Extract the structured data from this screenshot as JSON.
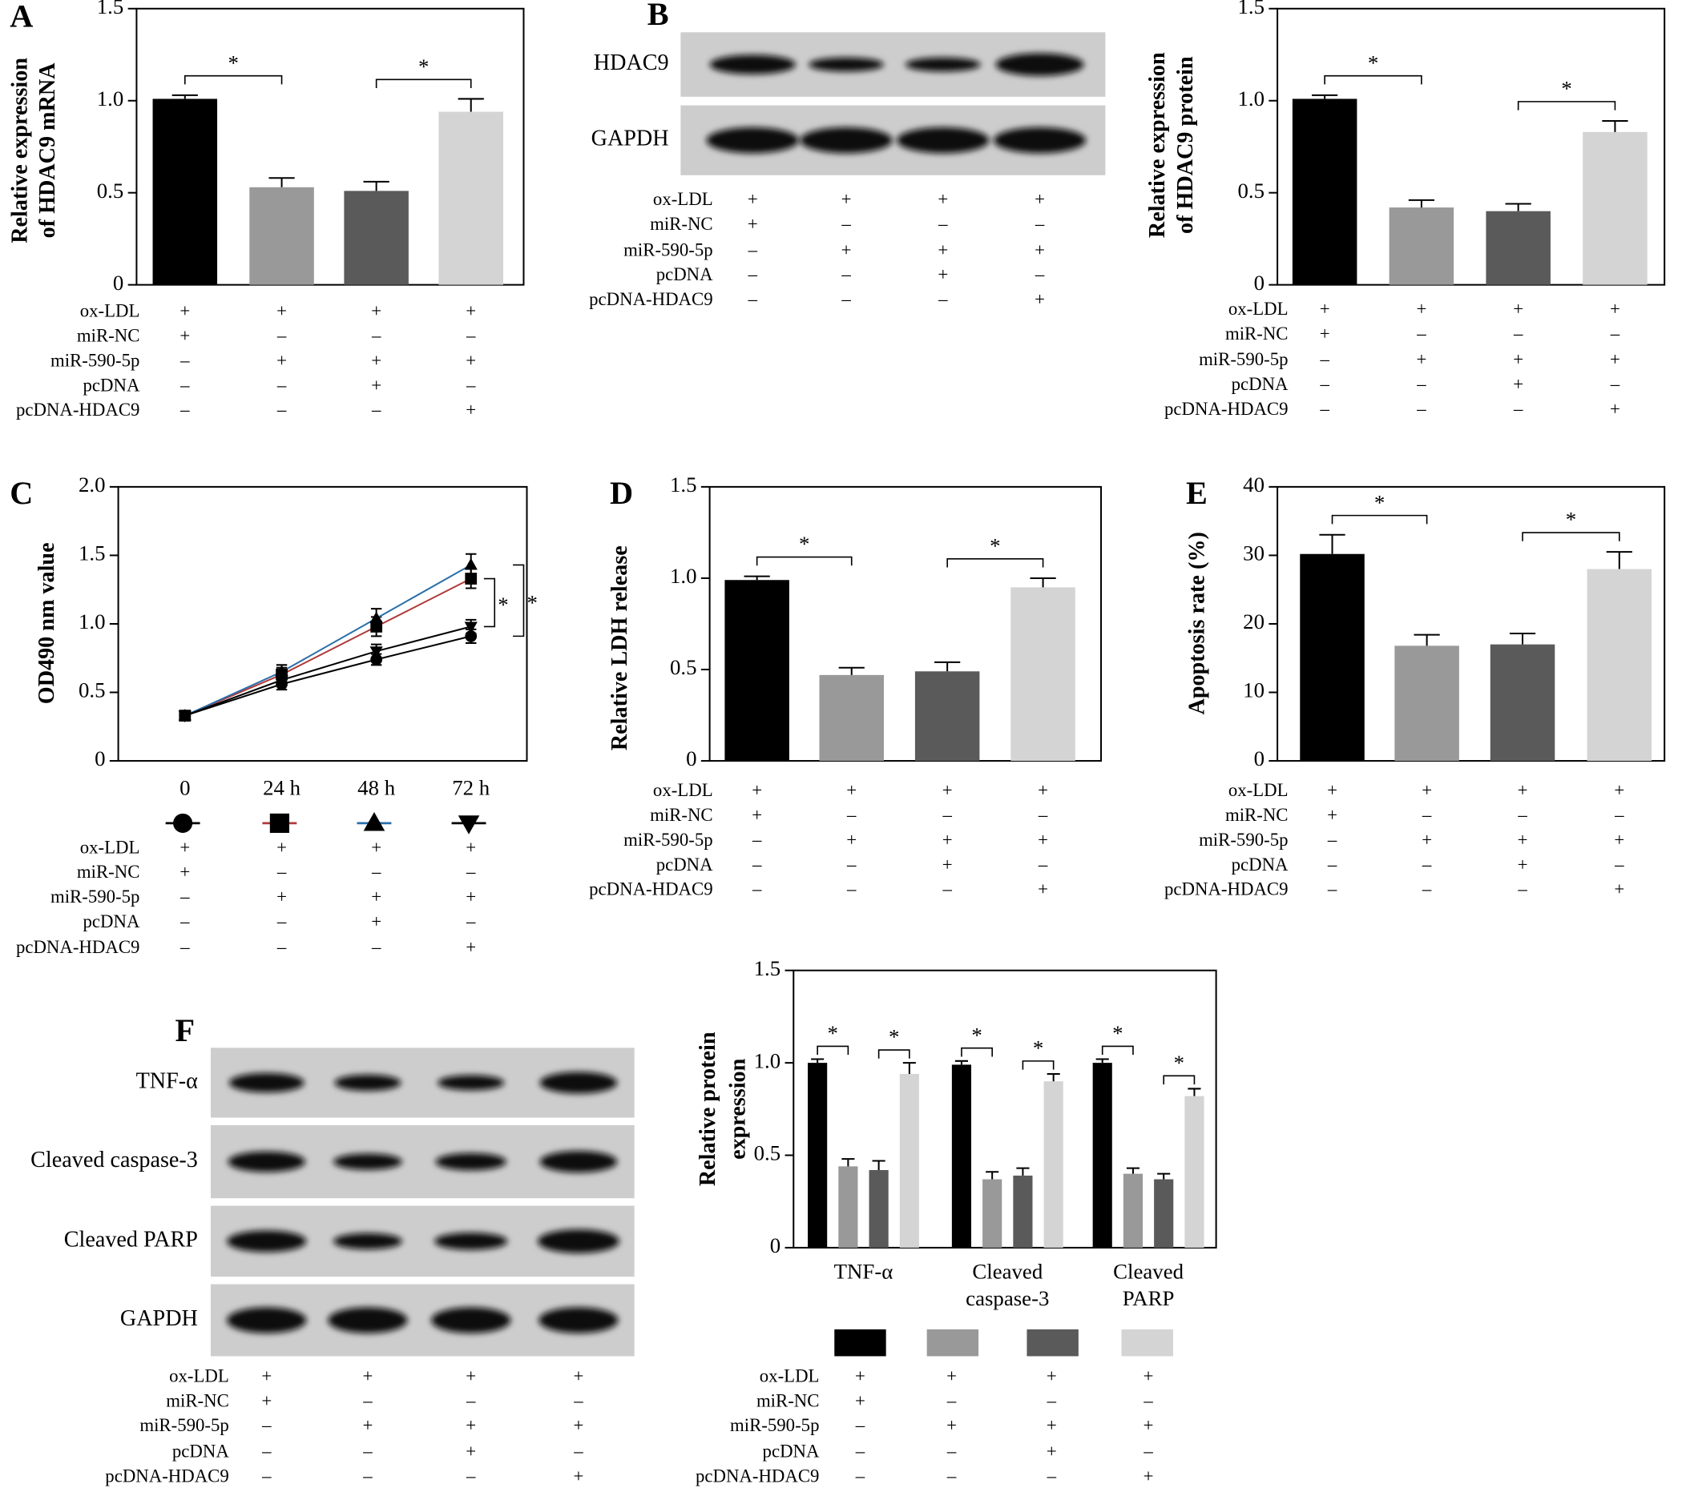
{
  "chart_data": [
    {
      "type": "bar",
      "panel": "A",
      "y_label": [
        "Relative expression",
        "of HDAC9 mRNA"
      ],
      "values": [
        1.01,
        0.53,
        0.51,
        0.94
      ],
      "errors": [
        0.02,
        0.05,
        0.05,
        0.07
      ],
      "colors": [
        "#000000",
        "#999999",
        "#5a5a5a",
        "#d4d4d4"
      ],
      "ylim": [
        0,
        1.5
      ],
      "yticks": [
        0,
        0.5,
        {
          "value": 1,
          "label": "1.0"
        },
        1.5
      ],
      "annotations": [
        {
          "text": "*",
          "from": 0,
          "to": 1
        },
        {
          "text": "*",
          "from": 2,
          "to": 3
        }
      ],
      "conditions": [
        {
          "label": "ox-LDL",
          "signs": [
            "+",
            "+",
            "+",
            "+"
          ]
        },
        {
          "label": "miR-NC",
          "signs": [
            "+",
            "–",
            "–",
            "–"
          ]
        },
        {
          "label": "miR-590-5p",
          "signs": [
            "–",
            "+",
            "+",
            "+"
          ]
        },
        {
          "label": "pcDNA",
          "signs": [
            "–",
            "–",
            "+",
            "–"
          ]
        },
        {
          "label": "pcDNA-HDAC9",
          "signs": [
            "–",
            "–",
            "–",
            "+"
          ]
        }
      ]
    },
    {
      "type": "bar",
      "y_label": [
        "Relative expression",
        "of HDAC9 protein"
      ],
      "values": [
        1.01,
        0.42,
        0.4,
        0.83
      ],
      "errors": [
        0.02,
        0.04,
        0.04,
        0.06
      ],
      "colors": [
        "#000000",
        "#999999",
        "#5a5a5a",
        "#d4d4d4"
      ],
      "ylim": [
        0,
        1.5
      ],
      "yticks": [
        0,
        0.5,
        {
          "value": 1,
          "label": "1.0"
        },
        1.5
      ],
      "annotations": [
        {
          "text": "*",
          "from": 0,
          "to": 1
        },
        {
          "text": "*",
          "from": 2,
          "to": 3
        }
      ],
      "conditions": [
        {
          "label": "ox-LDL",
          "signs": [
            "+",
            "+",
            "+",
            "+"
          ]
        },
        {
          "label": "miR-NC",
          "signs": [
            "+",
            "–",
            "–",
            "–"
          ]
        },
        {
          "label": "miR-590-5p",
          "signs": [
            "–",
            "+",
            "+",
            "+"
          ]
        },
        {
          "label": "pcDNA",
          "signs": [
            "–",
            "–",
            "+",
            "–"
          ]
        },
        {
          "label": "pcDNA-HDAC9",
          "signs": [
            "–",
            "–",
            "–",
            "+"
          ]
        }
      ]
    },
    {
      "type": "line",
      "panel": "C",
      "y_label": [
        "OD490 nm value"
      ],
      "categories": [
        "0",
        "24 h",
        "48 h",
        "72 h"
      ],
      "series": [
        {
          "color": "#000000",
          "marker": "circle",
          "values": [
            0.33,
            0.56,
            0.74,
            0.91
          ],
          "errors": [
            0.02,
            0.04,
            0.04,
            0.05
          ]
        },
        {
          "color": "#b03a3a",
          "marker": "square",
          "values": [
            0.33,
            0.63,
            0.98,
            1.33
          ],
          "errors": [
            0.02,
            0.05,
            0.07,
            0.07
          ]
        },
        {
          "color": "#2a6fa8",
          "marker": "triangle",
          "values": [
            0.33,
            0.65,
            1.04,
            1.43
          ],
          "errors": [
            0.02,
            0.05,
            0.07,
            0.08
          ]
        },
        {
          "color": "#000000",
          "marker": "triangle-down",
          "values": [
            0.33,
            0.59,
            0.8,
            0.98
          ],
          "errors": [
            0.02,
            0.04,
            0.05,
            0.05
          ]
        }
      ],
      "ylim": [
        0,
        2
      ],
      "yticks": [
        0,
        0.5,
        {
          "value": 1,
          "label": "1.0"
        },
        1.5,
        {
          "value": 2,
          "label": "2.0"
        }
      ],
      "annotations": [
        {
          "text": "*",
          "from": 1,
          "to": 3
        },
        {
          "text": "*",
          "from": 2,
          "to": 0
        }
      ],
      "conditions": [
        {
          "label": "ox-LDL",
          "signs": [
            "+",
            "+",
            "+",
            "+"
          ]
        },
        {
          "label": "miR-NC",
          "signs": [
            "+",
            "–",
            "–",
            "–"
          ]
        },
        {
          "label": "miR-590-5p",
          "signs": [
            "–",
            "+",
            "+",
            "+"
          ]
        },
        {
          "label": "pcDNA",
          "signs": [
            "–",
            "–",
            "+",
            "–"
          ]
        },
        {
          "label": "pcDNA-HDAC9",
          "signs": [
            "–",
            "–",
            "–",
            "+"
          ]
        }
      ]
    },
    {
      "type": "bar",
      "panel": "D",
      "y_label": [
        "Relative LDH release"
      ],
      "values": [
        0.99,
        0.47,
        0.49,
        0.95
      ],
      "errors": [
        0.02,
        0.04,
        0.05,
        0.05
      ],
      "colors": [
        "#000000",
        "#999999",
        "#5a5a5a",
        "#d4d4d4"
      ],
      "ylim": [
        0,
        1.5
      ],
      "yticks": [
        0,
        0.5,
        {
          "value": 1,
          "label": "1.0"
        },
        1.5
      ],
      "annotations": [
        {
          "text": "*",
          "from": 0,
          "to": 1
        },
        {
          "text": "*",
          "from": 2,
          "to": 3
        }
      ],
      "conditions": [
        {
          "label": "ox-LDL",
          "signs": [
            "+",
            "+",
            "+",
            "+"
          ]
        },
        {
          "label": "miR-NC",
          "signs": [
            "+",
            "–",
            "–",
            "–"
          ]
        },
        {
          "label": "miR-590-5p",
          "signs": [
            "–",
            "+",
            "+",
            "+"
          ]
        },
        {
          "label": "pcDNA",
          "signs": [
            "–",
            "–",
            "+",
            "–"
          ]
        },
        {
          "label": "pcDNA-HDAC9",
          "signs": [
            "–",
            "–",
            "–",
            "+"
          ]
        }
      ]
    },
    {
      "type": "bar",
      "panel": "E",
      "y_label": [
        "Apoptosis rate (%)"
      ],
      "values": [
        30.2,
        16.8,
        17.0,
        28.0
      ],
      "errors": [
        2.8,
        1.6,
        1.6,
        2.5
      ],
      "colors": [
        "#000000",
        "#999999",
        "#5a5a5a",
        "#d4d4d4"
      ],
      "ylim": [
        0,
        40
      ],
      "yticks": [
        0,
        10,
        20,
        30,
        40
      ],
      "annotations": [
        {
          "text": "*",
          "from": 0,
          "to": 1
        },
        {
          "text": "*",
          "from": 2,
          "to": 3
        }
      ],
      "conditions": [
        {
          "label": "ox-LDL",
          "signs": [
            "+",
            "+",
            "+",
            "+"
          ]
        },
        {
          "label": "miR-NC",
          "signs": [
            "+",
            "–",
            "–",
            "–"
          ]
        },
        {
          "label": "miR-590-5p",
          "signs": [
            "–",
            "+",
            "+",
            "+"
          ]
        },
        {
          "label": "pcDNA",
          "signs": [
            "–",
            "–",
            "+",
            "–"
          ]
        },
        {
          "label": "pcDNA-HDAC9",
          "signs": [
            "–",
            "–",
            "–",
            "+"
          ]
        }
      ]
    },
    {
      "type": "bar",
      "y_label": [
        "Relative protein",
        "expression"
      ],
      "categories": [
        [
          "TNF-α"
        ],
        [
          "Cleaved",
          "caspase-3"
        ],
        [
          "Cleaved",
          "PARP"
        ]
      ],
      "series": [
        {
          "color": "#000000",
          "values": [
            1.0,
            0.99,
            1.0
          ],
          "errors": [
            0.02,
            0.02,
            0.02
          ]
        },
        {
          "color": "#999999",
          "values": [
            0.44,
            0.37,
            0.4
          ],
          "errors": [
            0.04,
            0.04,
            0.03
          ]
        },
        {
          "color": "#5a5a5a",
          "values": [
            0.42,
            0.39,
            0.37
          ],
          "errors": [
            0.05,
            0.04,
            0.03
          ]
        },
        {
          "color": "#d4d4d4",
          "values": [
            0.94,
            0.9,
            0.82
          ],
          "errors": [
            0.06,
            0.04,
            0.04
          ]
        }
      ],
      "ylim": [
        0,
        1.5
      ],
      "yticks": [
        0,
        0.5,
        {
          "value": 1,
          "label": "1.0"
        },
        1.5
      ],
      "annotations": [
        {
          "text": "*",
          "group": 0,
          "from": 0,
          "to": 1
        },
        {
          "text": "*",
          "group": 0,
          "from": 2,
          "to": 3
        },
        {
          "text": "*",
          "group": 1,
          "from": 0,
          "to": 1
        },
        {
          "text": "*",
          "group": 1,
          "from": 2,
          "to": 3
        },
        {
          "text": "*",
          "group": 2,
          "from": 0,
          "to": 1
        },
        {
          "text": "*",
          "group": 2,
          "from": 2,
          "to": 3
        }
      ],
      "conditions": [
        {
          "label": "ox-LDL",
          "signs": [
            "+",
            "+",
            "+",
            "+"
          ]
        },
        {
          "label": "miR-NC",
          "signs": [
            "+",
            "–",
            "–",
            "–"
          ]
        },
        {
          "label": "miR-590-5p",
          "signs": [
            "–",
            "+",
            "+",
            "+"
          ]
        },
        {
          "label": "pcDNA",
          "signs": [
            "–",
            "–",
            "+",
            "–"
          ]
        },
        {
          "label": "pcDNA-HDAC9",
          "signs": [
            "–",
            "–",
            "–",
            "+"
          ]
        }
      ]
    }
  ],
  "blots": [
    {
      "panel": "B",
      "rows": [
        "HDAC9",
        "GAPDH"
      ],
      "conditions": [
        {
          "label": "ox-LDL",
          "signs": [
            "+",
            "+",
            "+",
            "+"
          ]
        },
        {
          "label": "miR-NC",
          "signs": [
            "+",
            "–",
            "–",
            "–"
          ]
        },
        {
          "label": "miR-590-5p",
          "signs": [
            "–",
            "+",
            "+",
            "+"
          ]
        },
        {
          "label": "pcDNA",
          "signs": [
            "–",
            "–",
            "+",
            "–"
          ]
        },
        {
          "label": "pcDNA-HDAC9",
          "signs": [
            "–",
            "–",
            "–",
            "+"
          ]
        }
      ]
    },
    {
      "panel": "F",
      "rows": [
        "TNF-α",
        "Cleaved caspase-3",
        "Cleaved PARP",
        "GAPDH"
      ],
      "conditions": [
        {
          "label": "ox-LDL",
          "signs": [
            "+",
            "+",
            "+",
            "+"
          ]
        },
        {
          "label": "miR-NC",
          "signs": [
            "+",
            "–",
            "–",
            "–"
          ]
        },
        {
          "label": "miR-590-5p",
          "signs": [
            "–",
            "+",
            "+",
            "+"
          ]
        },
        {
          "label": "pcDNA",
          "signs": [
            "–",
            "–",
            "+",
            "–"
          ]
        },
        {
          "label": "pcDNA-HDAC9",
          "signs": [
            "–",
            "–",
            "–",
            "+"
          ]
        }
      ]
    }
  ]
}
